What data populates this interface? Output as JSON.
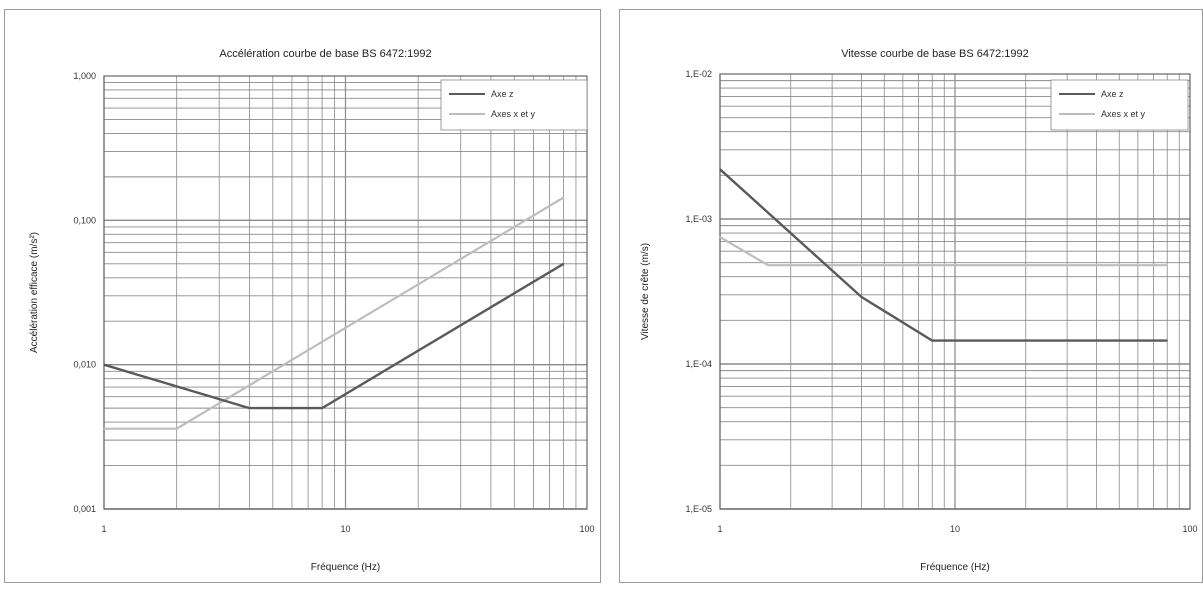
{
  "charts": [
    {
      "title": "Accélération courbe de base BS 6472:1992",
      "xlabel": "Fréquence (Hz)",
      "ylabel": "Accélération efficace (m/s²)",
      "xticks": [
        "1",
        "10",
        "100"
      ],
      "yticks": [
        "0,001",
        "0,010",
        "0,100",
        "1,000"
      ],
      "legend": [
        "Axe z",
        "Axes x et y"
      ]
    },
    {
      "title": "Vitesse courbe de base BS 6472:1992",
      "xlabel": "Fréquence (Hz)",
      "ylabel": "Vitesse de crête (m/s)",
      "xticks": [
        "1",
        "10",
        "100"
      ],
      "yticks": [
        "1,E-05",
        "1,E-04",
        "1,E-03",
        "1,E-02"
      ],
      "legend": [
        "Axe z",
        "Axes x et y"
      ]
    }
  ],
  "colors": {
    "axe_z": "#5a5a5a",
    "axes_xy": "#bdbdbd",
    "grid": "#8a8a8a"
  },
  "chart_data": [
    {
      "type": "line",
      "title": "Accélération courbe de base BS 6472:1992",
      "xlabel": "Fréquence (Hz)",
      "ylabel": "Accélération efficace (m/s²)",
      "xscale": "log",
      "yscale": "log",
      "xlim": [
        1,
        100
      ],
      "ylim": [
        0.001,
        1
      ],
      "grid": true,
      "legend_position": "top-right",
      "series": [
        {
          "name": "Axe z",
          "x": [
            1,
            4,
            8,
            80
          ],
          "y": [
            0.01,
            0.005,
            0.005,
            0.05
          ]
        },
        {
          "name": "Axes x et y",
          "x": [
            1,
            2,
            80
          ],
          "y": [
            0.0036,
            0.0036,
            0.144
          ]
        }
      ]
    },
    {
      "type": "line",
      "title": "Vitesse courbe de base BS 6472:1992",
      "xlabel": "Fréquence (Hz)",
      "ylabel": "Vitesse de crête (m/s)",
      "xscale": "log",
      "yscale": "log",
      "xlim": [
        1,
        100
      ],
      "ylim": [
        1e-05,
        0.01
      ],
      "grid": true,
      "legend_position": "top-right",
      "series": [
        {
          "name": "Axe z",
          "x": [
            1,
            4,
            8,
            80
          ],
          "y": [
            0.0022,
            0.00029,
            0.000145,
            0.000145
          ]
        },
        {
          "name": "Axes x et y",
          "x": [
            1,
            1.6,
            80
          ],
          "y": [
            0.00075,
            0.00048,
            0.00048
          ]
        }
      ]
    }
  ]
}
